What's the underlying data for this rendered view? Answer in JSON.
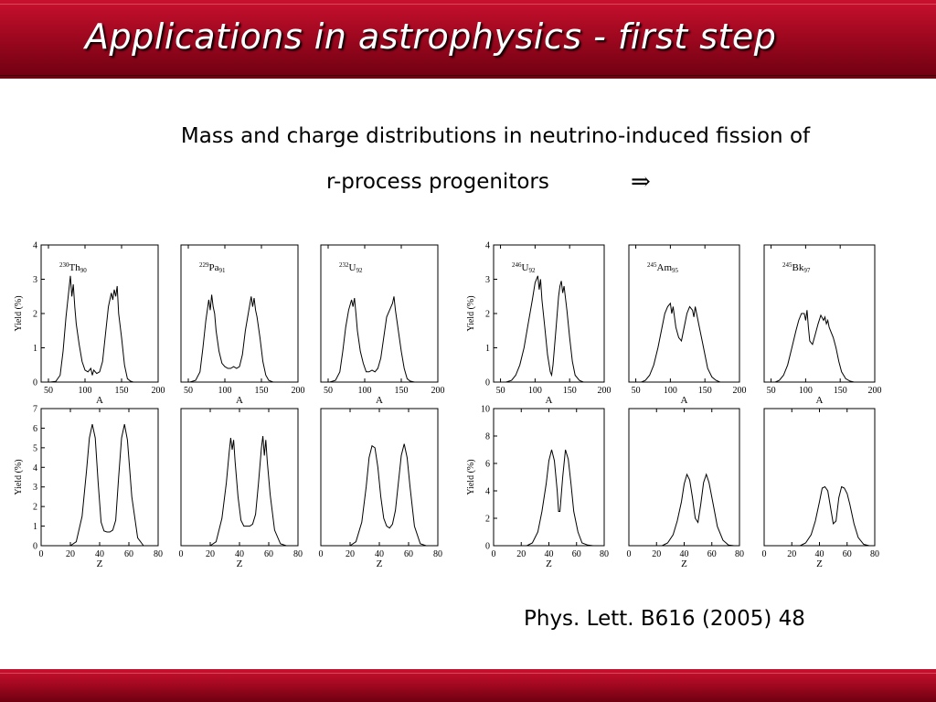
{
  "slide": {
    "title": "Applications in astrophysics - first step",
    "subtitle_line1": "Mass and charge distributions in neutrino-induced fission of",
    "subtitle_line2": "r-process progenitors",
    "arrow": "⇒",
    "reference": "Phys. Lett. B616 (2005) 48"
  },
  "chart_data": [
    {
      "type": "line",
      "nucleus_mass": "230",
      "nucleus_symbol": "Th",
      "nucleus_Z": "90",
      "xlabel": "A",
      "ylabel": "Yield (%)",
      "xlim": [
        40,
        200
      ],
      "ylim": [
        0,
        4
      ],
      "xticks": [
        50,
        100,
        150,
        200
      ],
      "yticks": [
        0,
        1,
        2,
        3,
        4
      ],
      "x": [
        52,
        60,
        66,
        70,
        74,
        78,
        80,
        82,
        84,
        86,
        88,
        92,
        96,
        100,
        104,
        108,
        110,
        112,
        116,
        120,
        124,
        128,
        132,
        136,
        138,
        140,
        142,
        144,
        146,
        150,
        154,
        158,
        162,
        166,
        172
      ],
      "y": [
        0,
        0.02,
        0.2,
        0.9,
        1.9,
        2.7,
        3.1,
        2.5,
        2.85,
        2.2,
        1.7,
        1.1,
        0.6,
        0.35,
        0.3,
        0.4,
        0.2,
        0.35,
        0.25,
        0.3,
        0.6,
        1.4,
        2.2,
        2.6,
        2.4,
        2.7,
        2.5,
        2.8,
        2.0,
        1.3,
        0.5,
        0.1,
        0.03,
        0,
        0
      ]
    },
    {
      "type": "line",
      "nucleus_mass": "229",
      "nucleus_symbol": "Pa",
      "nucleus_Z": "91",
      "xlabel": "A",
      "ylabel": "",
      "xlim": [
        40,
        200
      ],
      "ylim": [
        0,
        4
      ],
      "xticks": [
        50,
        100,
        150,
        200
      ],
      "yticks": [],
      "x": [
        52,
        60,
        66,
        70,
        74,
        78,
        80,
        82,
        84,
        86,
        88,
        92,
        96,
        100,
        104,
        108,
        112,
        116,
        120,
        124,
        128,
        132,
        136,
        138,
        140,
        142,
        144,
        148,
        152,
        156,
        160,
        166,
        172
      ],
      "y": [
        0,
        0.05,
        0.3,
        1.0,
        1.8,
        2.4,
        2.1,
        2.55,
        2.2,
        2.0,
        1.5,
        0.9,
        0.55,
        0.45,
        0.4,
        0.4,
        0.45,
        0.4,
        0.45,
        0.8,
        1.5,
        2.0,
        2.5,
        2.2,
        2.45,
        2.1,
        1.9,
        1.3,
        0.6,
        0.2,
        0.05,
        0,
        0
      ]
    },
    {
      "type": "line",
      "nucleus_mass": "232",
      "nucleus_symbol": "U",
      "nucleus_Z": "92",
      "xlabel": "A",
      "ylabel": "",
      "xlim": [
        40,
        200
      ],
      "ylim": [
        0,
        4
      ],
      "xticks": [
        50,
        100,
        150,
        200
      ],
      "yticks": [],
      "x": [
        52,
        60,
        66,
        70,
        74,
        78,
        82,
        84,
        86,
        88,
        90,
        94,
        98,
        102,
        106,
        110,
        114,
        118,
        122,
        126,
        130,
        134,
        138,
        140,
        142,
        144,
        146,
        150,
        154,
        158,
        162,
        168,
        174
      ],
      "y": [
        0,
        0.05,
        0.3,
        0.9,
        1.6,
        2.1,
        2.4,
        2.2,
        2.45,
        2.0,
        1.5,
        0.9,
        0.55,
        0.3,
        0.3,
        0.35,
        0.3,
        0.4,
        0.7,
        1.3,
        1.9,
        2.1,
        2.3,
        2.5,
        2.1,
        1.8,
        1.5,
        0.9,
        0.4,
        0.1,
        0.03,
        0,
        0
      ]
    },
    {
      "type": "line",
      "nucleus_mass": "246",
      "nucleus_symbol": "U",
      "nucleus_Z": "92",
      "xlabel": "A",
      "ylabel": "Yield (%)",
      "xlim": [
        40,
        200
      ],
      "ylim": [
        0,
        4
      ],
      "xticks": [
        50,
        100,
        150,
        200
      ],
      "yticks": [
        0,
        1,
        2,
        3,
        4
      ],
      "x": [
        58,
        66,
        72,
        78,
        84,
        90,
        96,
        100,
        104,
        106,
        108,
        110,
        114,
        118,
        122,
        124,
        126,
        130,
        134,
        136,
        138,
        140,
        142,
        146,
        150,
        154,
        158,
        164,
        170,
        178
      ],
      "y": [
        0,
        0.05,
        0.2,
        0.5,
        1.0,
        1.7,
        2.4,
        2.9,
        3.1,
        2.7,
        3.0,
        2.4,
        1.6,
        0.8,
        0.3,
        0.2,
        0.5,
        1.5,
        2.5,
        2.8,
        2.95,
        2.6,
        2.8,
        2.1,
        1.3,
        0.6,
        0.2,
        0.05,
        0,
        0
      ]
    },
    {
      "type": "line",
      "nucleus_mass": "245",
      "nucleus_symbol": "Am",
      "nucleus_Z": "95",
      "xlabel": "A",
      "ylabel": "",
      "xlim": [
        40,
        200
      ],
      "ylim": [
        0,
        4
      ],
      "xticks": [
        50,
        100,
        150,
        200
      ],
      "yticks": [],
      "x": [
        58,
        64,
        70,
        76,
        82,
        88,
        92,
        96,
        100,
        102,
        104,
        106,
        108,
        112,
        116,
        120,
        124,
        128,
        132,
        134,
        136,
        138,
        140,
        142,
        146,
        150,
        154,
        160,
        166,
        172,
        180
      ],
      "y": [
        0,
        0.05,
        0.2,
        0.5,
        1.0,
        1.6,
        2.0,
        2.2,
        2.3,
        2.0,
        2.2,
        1.9,
        1.6,
        1.3,
        1.2,
        1.6,
        2.0,
        2.2,
        2.1,
        1.9,
        2.2,
        2.0,
        1.8,
        1.6,
        1.2,
        0.8,
        0.4,
        0.15,
        0.05,
        0,
        0
      ]
    },
    {
      "type": "line",
      "nucleus_mass": "245",
      "nucleus_symbol": "Bk",
      "nucleus_Z": "97",
      "xlabel": "A",
      "ylabel": "",
      "xlim": [
        40,
        200
      ],
      "ylim": [
        0,
        4
      ],
      "xticks": [
        50,
        100,
        150,
        200
      ],
      "yticks": [],
      "x": [
        56,
        62,
        68,
        74,
        80,
        86,
        90,
        94,
        98,
        100,
        102,
        104,
        106,
        110,
        114,
        118,
        122,
        126,
        128,
        130,
        132,
        134,
        136,
        140,
        144,
        148,
        152,
        158,
        164,
        170,
        178
      ],
      "y": [
        0,
        0.05,
        0.2,
        0.5,
        1.0,
        1.5,
        1.8,
        2.0,
        2.0,
        1.8,
        2.1,
        1.6,
        1.2,
        1.1,
        1.4,
        1.7,
        1.95,
        1.8,
        1.9,
        1.7,
        1.8,
        1.6,
        1.5,
        1.3,
        1.0,
        0.6,
        0.3,
        0.1,
        0.03,
        0,
        0
      ]
    },
    {
      "type": "line",
      "xlabel": "Z",
      "ylabel": "Yield (%)",
      "xlim": [
        0,
        80
      ],
      "ylim": [
        0,
        7
      ],
      "xticks": [
        0,
        20,
        40,
        60,
        80
      ],
      "yticks": [
        0,
        1,
        2,
        3,
        4,
        5,
        6,
        7
      ],
      "x": [
        20,
        24,
        28,
        31,
        33,
        35,
        37,
        39,
        41,
        43,
        45,
        47,
        49,
        51,
        53,
        55,
        57,
        59,
        62,
        66,
        70
      ],
      "y": [
        0,
        0.2,
        1.5,
        3.8,
        5.5,
        6.2,
        5.5,
        3.2,
        1.2,
        0.75,
        0.7,
        0.7,
        0.8,
        1.3,
        3.5,
        5.5,
        6.2,
        5.4,
        2.5,
        0.4,
        0
      ]
    },
    {
      "type": "line",
      "xlabel": "Z",
      "ylabel": "",
      "xlim": [
        0,
        80
      ],
      "ylim": [
        0,
        7
      ],
      "xticks": [
        0,
        20,
        40,
        60,
        80
      ],
      "yticks": [],
      "x": [
        20,
        24,
        28,
        31,
        33,
        34,
        35,
        36,
        37,
        39,
        41,
        43,
        45,
        47,
        49,
        51,
        53,
        55,
        56,
        57,
        58,
        59,
        61,
        64,
        68,
        72
      ],
      "y": [
        0,
        0.2,
        1.4,
        3.2,
        4.8,
        5.5,
        4.9,
        5.4,
        4.3,
        2.5,
        1.3,
        1.0,
        1.0,
        1.0,
        1.1,
        1.6,
        3.2,
        5.0,
        5.6,
        4.6,
        5.4,
        4.3,
        2.6,
        0.8,
        0.1,
        0
      ]
    },
    {
      "type": "line",
      "xlabel": "Z",
      "ylabel": "",
      "xlim": [
        0,
        80
      ],
      "ylim": [
        0,
        7
      ],
      "xticks": [
        0,
        20,
        40,
        60,
        80
      ],
      "yticks": [],
      "x": [
        20,
        24,
        28,
        31,
        33,
        35,
        37,
        39,
        41,
        43,
        45,
        47,
        49,
        51,
        53,
        55,
        57,
        59,
        61,
        64,
        68,
        72
      ],
      "y": [
        0,
        0.2,
        1.2,
        3.0,
        4.5,
        5.1,
        5.0,
        4.0,
        2.5,
        1.4,
        1.0,
        0.9,
        1.1,
        1.8,
        3.2,
        4.6,
        5.2,
        4.5,
        3.0,
        1.0,
        0.1,
        0
      ]
    },
    {
      "type": "line",
      "xlabel": "Z",
      "ylabel": "Yield (%)",
      "xlim": [
        0,
        80
      ],
      "ylim": [
        0,
        10
      ],
      "xticks": [
        0,
        20,
        40,
        60,
        80
      ],
      "yticks": [
        0,
        2,
        4,
        6,
        8,
        10
      ],
      "x": [
        24,
        28,
        32,
        35,
        38,
        40,
        42,
        44,
        46,
        47,
        48,
        50,
        52,
        54,
        56,
        58,
        61,
        64,
        68,
        72
      ],
      "y": [
        0,
        0.2,
        1.0,
        2.5,
        4.5,
        6.2,
        7.0,
        6.2,
        4.0,
        2.5,
        2.5,
        5.0,
        7.0,
        6.3,
        4.5,
        2.5,
        1.0,
        0.2,
        0.05,
        0
      ]
    },
    {
      "type": "line",
      "xlabel": "Z",
      "ylabel": "",
      "xlim": [
        0,
        80
      ],
      "ylim": [
        0,
        10
      ],
      "xticks": [
        0,
        20,
        40,
        60,
        80
      ],
      "yticks": [],
      "x": [
        24,
        28,
        32,
        35,
        38,
        40,
        42,
        44,
        46,
        48,
        50,
        52,
        54,
        56,
        58,
        61,
        64,
        68,
        72,
        76
      ],
      "y": [
        0,
        0.2,
        0.8,
        1.8,
        3.2,
        4.5,
        5.2,
        4.8,
        3.5,
        2.0,
        1.7,
        3.0,
        4.6,
        5.2,
        4.6,
        3.0,
        1.4,
        0.4,
        0.05,
        0
      ]
    },
    {
      "type": "line",
      "xlabel": "Z",
      "ylabel": "",
      "xlim": [
        0,
        80
      ],
      "ylim": [
        0,
        10
      ],
      "xticks": [
        0,
        20,
        40,
        60,
        80
      ],
      "yticks": [],
      "x": [
        26,
        30,
        34,
        37,
        40,
        42,
        44,
        46,
        48,
        50,
        52,
        54,
        56,
        58,
        60,
        62,
        65,
        68,
        72,
        76
      ],
      "y": [
        0,
        0.2,
        0.8,
        1.8,
        3.2,
        4.2,
        4.3,
        4.0,
        2.8,
        1.6,
        1.8,
        3.5,
        4.3,
        4.2,
        3.8,
        3.0,
        1.6,
        0.6,
        0.1,
        0
      ]
    }
  ]
}
